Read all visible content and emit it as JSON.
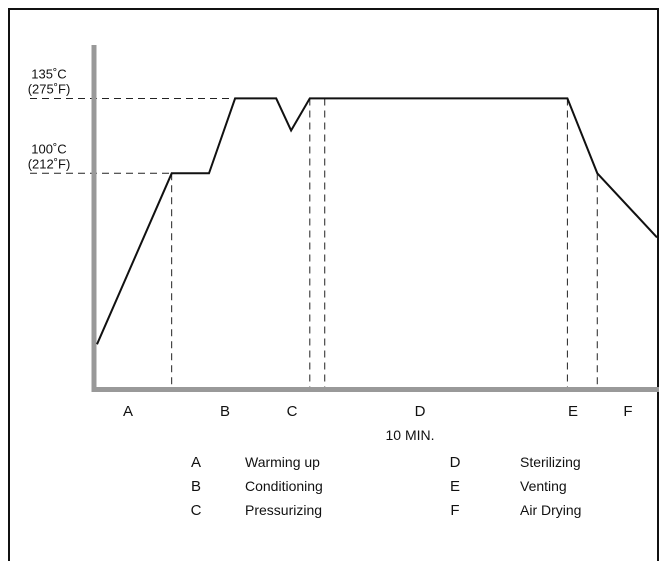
{
  "chart_data": {
    "type": "line",
    "title": "",
    "xlabel": "",
    "ylabel": "",
    "y_ticks": [
      {
        "value": 100,
        "label_lines": [
          "100˚C",
          "(212˚F)"
        ]
      },
      {
        "value": 135,
        "label_lines": [
          "135˚C",
          "(275˚F)"
        ]
      }
    ],
    "duration_label": "10 MIN.",
    "phases": [
      {
        "key": "A",
        "name": "Warming up"
      },
      {
        "key": "B",
        "name": "Conditioning"
      },
      {
        "key": "C",
        "name": "Pressurizing"
      },
      {
        "key": "D",
        "name": "Sterilizing"
      },
      {
        "key": "E",
        "name": "Venting"
      },
      {
        "key": "F",
        "name": "Air Drying"
      }
    ],
    "series": [
      {
        "x": [
          0,
          1.0,
          1.5,
          1.85,
          2.4,
          2.6,
          2.85,
          3.05,
          3.2,
          6.3,
          6.7,
          7.5
        ],
        "y": [
          20,
          100,
          100,
          135,
          135,
          120,
          135,
          135,
          135,
          135,
          100,
          70
        ]
      }
    ],
    "phase_boundaries_x": [
      1.0,
      2.85,
      3.05,
      6.3,
      6.7
    ],
    "xlim": [
      0,
      7.5
    ],
    "ylim": [
      0,
      160
    ]
  }
}
